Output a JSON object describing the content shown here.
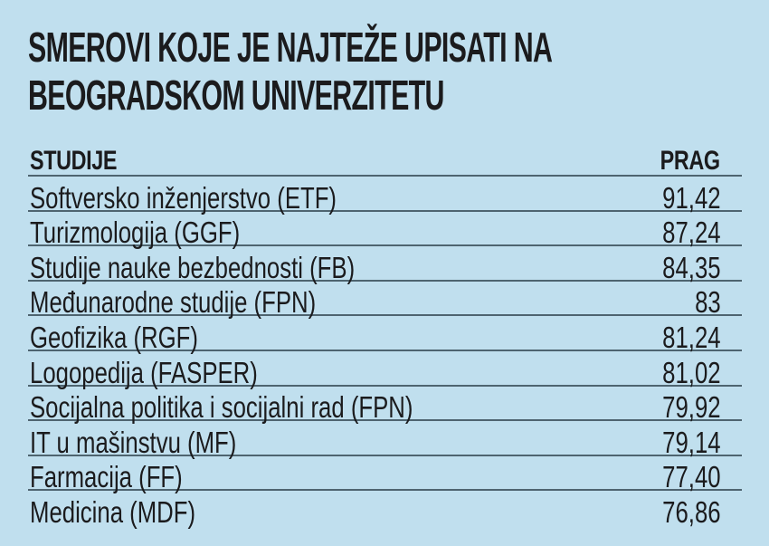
{
  "title": {
    "line1": "SMEROVI KOJE JE NAJTEŽE UPISATI NA",
    "line2": "BEOGRADSKOM UNIVERZITETU"
  },
  "table": {
    "headers": [
      "STUDIJE",
      "PRAG"
    ],
    "rows": [
      {
        "studije": "Softversko inženjerstvo (ETF)",
        "prag": "91,42"
      },
      {
        "studije": "Turizmologija (GGF)",
        "prag": "87,24"
      },
      {
        "studije": "Studije nauke bezbednosti (FB)",
        "prag": "84,35"
      },
      {
        "studije": "Međunarodne studije (FPN)",
        "prag": "83"
      },
      {
        "studije": "Geofizika (RGF)",
        "prag": "81,24"
      },
      {
        "studije": "Logopedija (FASPER)",
        "prag": "81,02"
      },
      {
        "studije": "Socijalna politika i socijalni rad (FPN)",
        "prag": "79,92"
      },
      {
        "studije": "IT u mašinstvu (MF)",
        "prag": "79,14"
      },
      {
        "studije": "Farmacija (FF)",
        "prag": "77,40"
      },
      {
        "studije": "Medicina (MDF)",
        "prag": "76,86"
      }
    ]
  },
  "colors": {
    "background": "#c0dfee",
    "text": "#1b1b1d",
    "rule": "#4e6470"
  }
}
